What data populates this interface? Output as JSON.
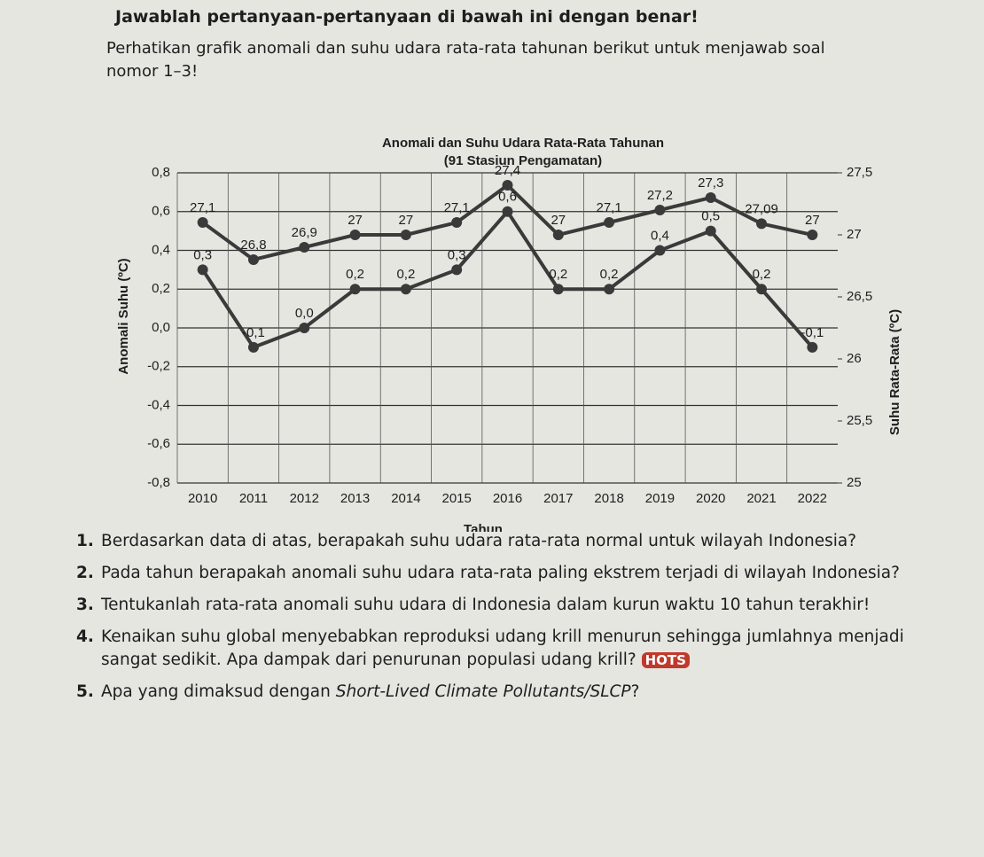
{
  "header": {
    "instruction": "Jawablah pertanyaan-pertanyaan di bawah ini dengan benar!",
    "intro": "Perhatikan grafik anomali dan suhu udara rata-rata tahunan berikut untuk menjawab soal nomor 1–3!"
  },
  "chart_data": {
    "type": "line",
    "title": "Anomali dan Suhu Udara Rata-Rata Tahunan",
    "subtitle": "(91 Stasiun Pengamatan)",
    "x_label": "Tahun",
    "y_label": "Anomali Suhu (ºC)",
    "y2_label": "Suhu Rata-Rata (ºC)",
    "categories": [
      "2010",
      "2011",
      "2012",
      "2013",
      "2014",
      "2015",
      "2016",
      "2017",
      "2018",
      "2019",
      "2020",
      "2021",
      "2022"
    ],
    "series": [
      {
        "color": "#3a3a3a",
        "axis": "y2",
        "values": [
          27.1,
          26.8,
          26.9,
          27,
          27,
          27.1,
          27.4,
          27,
          27.1,
          27.2,
          27.3,
          27.09,
          27
        ],
        "value_labels": [
          "27,1",
          "26,8",
          "26,9",
          "27",
          "27",
          "27,1",
          "27,4",
          "27",
          "27,1",
          "27,2",
          "27,3",
          "27,09",
          "27"
        ]
      },
      {
        "color": "#3a3a3a",
        "values": [
          0.3,
          -0.1,
          0.0,
          0.2,
          0.2,
          0.3,
          0.6,
          0.2,
          0.2,
          0.4,
          0.5,
          0.2,
          -0.1
        ],
        "value_labels": [
          "0,3",
          "-0,1",
          "0,0",
          "0,2",
          "0,2",
          "0,3",
          "0,6",
          "0,2",
          "0,2",
          "0,4",
          "0,5",
          "0,2",
          "-0,1"
        ]
      }
    ],
    "ylim": [
      -0.8,
      0.8
    ],
    "yticks": [
      {
        "value": -0.8,
        "label": "-0,8"
      },
      {
        "value": -0.6,
        "label": "-0,6"
      },
      {
        "value": -0.4,
        "label": "-0,4"
      },
      {
        "value": -0.2,
        "label": "-0,2"
      },
      {
        "value": 0,
        "label": "0,0"
      },
      {
        "value": 0.2,
        "label": "0,2"
      },
      {
        "value": 0.4,
        "label": "0,4"
      },
      {
        "value": 0.6,
        "label": "0,6"
      },
      {
        "value": 0.8,
        "label": "0,8"
      }
    ],
    "y2lim": [
      25,
      27.5
    ],
    "y2ticks": [
      25,
      {
        "value": 25.5,
        "label": "25,5"
      },
      26,
      {
        "value": 26.5,
        "label": "26,5"
      },
      27,
      {
        "value": 27.5,
        "label": "27,5"
      }
    ],
    "grid": true
  },
  "questions": [
    {
      "number": "1.",
      "text": "Berdasarkan data di atas, berapakah suhu udara rata-rata normal untuk wilayah Indonesia?"
    },
    {
      "number": "2.",
      "text": "Pada tahun berapakah anomali suhu udara rata-rata paling ekstrem terjadi di wilayah Indonesia?"
    },
    {
      "number": "3.",
      "text": "Tentukanlah rata-rata anomali suhu udara di Indonesia dalam kurun waktu 10 tahun terakhir!"
    },
    {
      "number": "4.",
      "text": "Kenaikan suhu global menyebabkan reproduksi udang krill menurun sehingga jumlahnya menjadi sangat sedikit. Apa dampak dari penurunan populasi udang krill?",
      "badge": "HOTS"
    },
    {
      "number": "5.",
      "text": "Apa yang dimaksud dengan ",
      "italic": "Short-Lived Climate Pollutants/SLCP",
      "end": "?"
    }
  ]
}
